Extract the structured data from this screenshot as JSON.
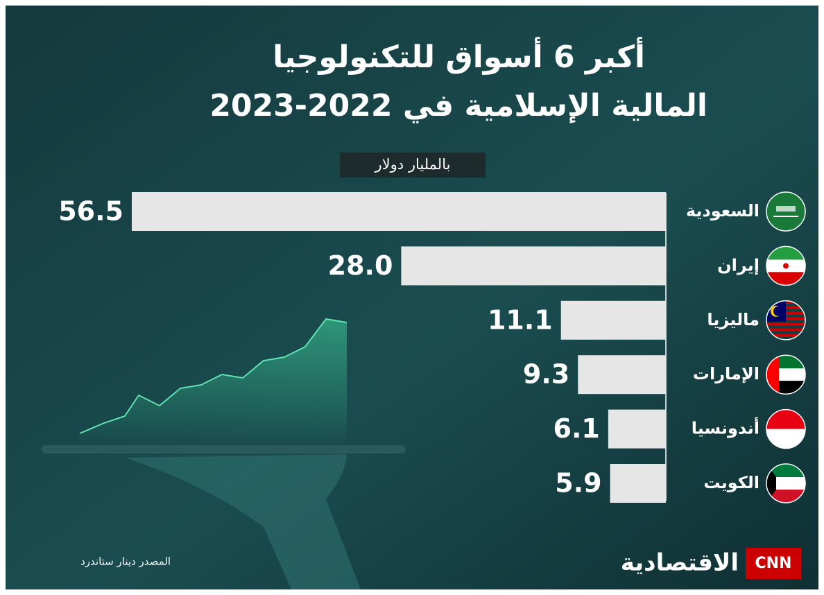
{
  "chart_data": {
    "type": "bar",
    "orientation": "horizontal",
    "title": [
      "أكبر 6 أسواق للتكنولوجيا",
      "المالية الإسلامية في 2022-2023"
    ],
    "unit_label": "بالمليار دولار",
    "categories": [
      "السعودية",
      "إيران",
      "ماليزيا",
      "الإمارات",
      "أندونسيا",
      "الكويت"
    ],
    "values": [
      56.5,
      28.0,
      11.1,
      9.3,
      6.1,
      5.9
    ],
    "value_labels": [
      "56.5",
      "28.0",
      "11.1",
      "9.3",
      "6.1",
      "5.9"
    ],
    "color": "#e6e6e6"
  },
  "footer": {
    "source": "المصدر دينار ستاندرد",
    "brand": "CNN",
    "brand_name": "الاقتصادية"
  }
}
